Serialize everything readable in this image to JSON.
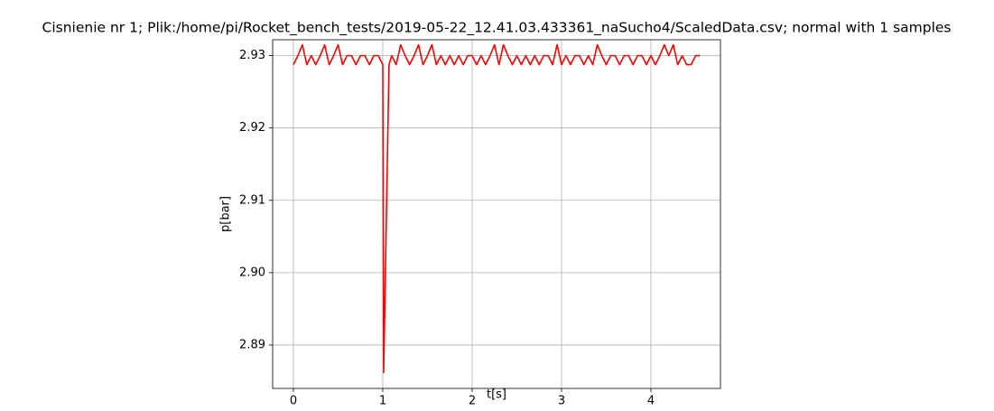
{
  "chart_data": {
    "type": "line",
    "title": "Cisnienie nr 1; Plik:/home/pi/Rocket_bench_tests/2019-05-22_12.41.03.433361_naSucho4/ScaledData.csv; normal with 1 samples",
    "xlabel": "t[s]",
    "ylabel": "p[bar]",
    "x": [
      0,
      0.05,
      0.1,
      0.15,
      0.2,
      0.25,
      0.3,
      0.35,
      0.4,
      0.45,
      0.5,
      0.55,
      0.6,
      0.65,
      0.7,
      0.75,
      0.8,
      0.85,
      0.9,
      0.95,
      1.0,
      1.01,
      1.07,
      1.1,
      1.15,
      1.2,
      1.25,
      1.3,
      1.35,
      1.4,
      1.45,
      1.5,
      1.55,
      1.6,
      1.65,
      1.7,
      1.75,
      1.8,
      1.85,
      1.9,
      1.95,
      2.0,
      2.05,
      2.1,
      2.15,
      2.2,
      2.25,
      2.3,
      2.35,
      2.4,
      2.45,
      2.5,
      2.55,
      2.6,
      2.65,
      2.7,
      2.75,
      2.8,
      2.85,
      2.9,
      2.95,
      3.0,
      3.05,
      3.1,
      3.15,
      3.2,
      3.25,
      3.3,
      3.35,
      3.4,
      3.45,
      3.5,
      3.55,
      3.6,
      3.65,
      3.7,
      3.75,
      3.8,
      3.85,
      3.9,
      3.95,
      4.0,
      4.05,
      4.1,
      4.15,
      4.2,
      4.25,
      4.3,
      4.35,
      4.4,
      4.45,
      4.5,
      4.55
    ],
    "series": [
      {
        "name": "p",
        "color": "#ff0000",
        "values": [
          2.92875,
          2.93,
          2.9315,
          2.92875,
          2.93,
          2.92875,
          2.93,
          2.9315,
          2.92875,
          2.93,
          2.9315,
          2.92875,
          2.93,
          2.93,
          2.92875,
          2.93,
          2.93,
          2.92875,
          2.93,
          2.93,
          2.92875,
          2.8862,
          2.92875,
          2.93,
          2.92875,
          2.9315,
          2.93,
          2.92875,
          2.93,
          2.9315,
          2.92875,
          2.93,
          2.9315,
          2.92875,
          2.93,
          2.92875,
          2.93,
          2.92875,
          2.93,
          2.92875,
          2.93,
          2.93,
          2.92875,
          2.93,
          2.92875,
          2.93,
          2.9315,
          2.92875,
          2.9315,
          2.93,
          2.92875,
          2.93,
          2.92875,
          2.93,
          2.92875,
          2.93,
          2.92875,
          2.93,
          2.93,
          2.92875,
          2.9315,
          2.92875,
          2.93,
          2.92875,
          2.93,
          2.93,
          2.92875,
          2.93,
          2.92875,
          2.9315,
          2.93,
          2.92875,
          2.93,
          2.93,
          2.92875,
          2.93,
          2.93,
          2.92875,
          2.93,
          2.93,
          2.92875,
          2.93,
          2.92875,
          2.93,
          2.9315,
          2.93,
          2.9315,
          2.92875,
          2.93,
          2.92875,
          2.92875,
          2.93,
          2.93
        ]
      }
    ],
    "xlim": [
      -0.232,
      4.778
    ],
    "ylim": [
      2.884,
      2.9322
    ],
    "xticks": [
      0,
      1,
      2,
      3,
      4
    ],
    "yticks": [
      2.89,
      {
        "value": 2.9,
        "label": "2.90"
      },
      2.91,
      2.92,
      2.93
    ],
    "grid": true
  }
}
